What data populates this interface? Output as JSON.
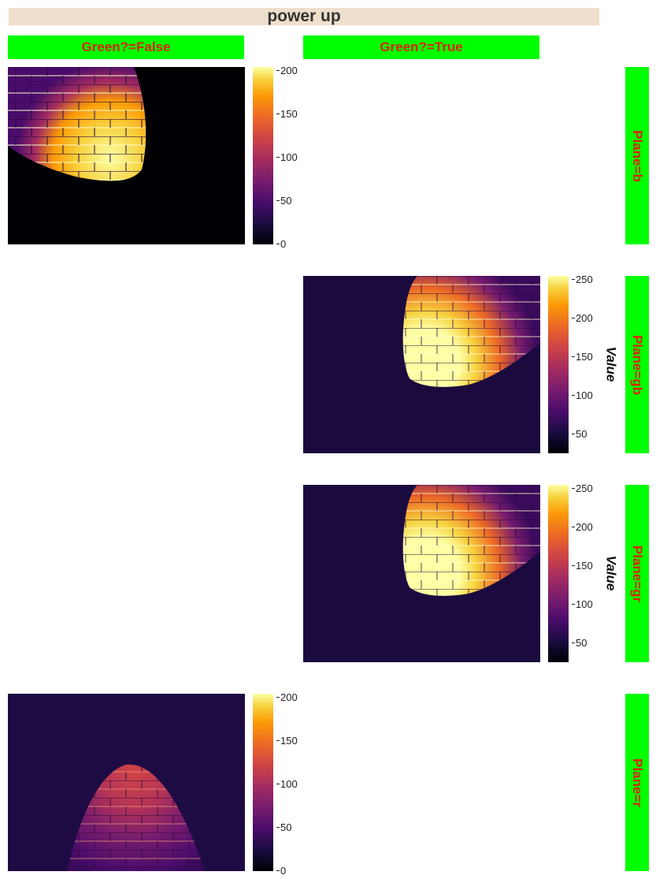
{
  "title": "power up",
  "columns": [
    "Green?=False",
    "Green?=True"
  ],
  "rows": [
    "Plane=b",
    "Plane=gb",
    "Plane=gr",
    "Plane=r"
  ],
  "colorbar_label": "Value",
  "colormap": "inferno",
  "colors": {
    "title_bg": "#eedfcc",
    "header_bg": "#00ff00",
    "header_text": "#dd2200"
  },
  "chart_data": {
    "type": "heatmap",
    "title": "power up",
    "facets": [
      {
        "row": "Plane=b",
        "col": "Green?=False",
        "colorbar_ticks": [
          "0",
          "50",
          "100",
          "150",
          "200"
        ],
        "vmin": 0,
        "vmax": 205,
        "colorbar_label": ""
      },
      {
        "row": "Plane=gb",
        "col": "Green?=True",
        "colorbar_ticks": [
          "50",
          "100",
          "150",
          "200",
          "250"
        ],
        "vmin": 28,
        "vmax": 255,
        "colorbar_label": "Value"
      },
      {
        "row": "Plane=gr",
        "col": "Green?=True",
        "colorbar_ticks": [
          "50",
          "100",
          "150",
          "200",
          "250"
        ],
        "vmin": 28,
        "vmax": 255,
        "colorbar_label": "Value"
      },
      {
        "row": "Plane=r",
        "col": "Green?=False",
        "colorbar_ticks": [
          "0",
          "50",
          "100",
          "150",
          "200"
        ],
        "vmin": 0,
        "vmax": 205,
        "colorbar_label": ""
      }
    ]
  }
}
